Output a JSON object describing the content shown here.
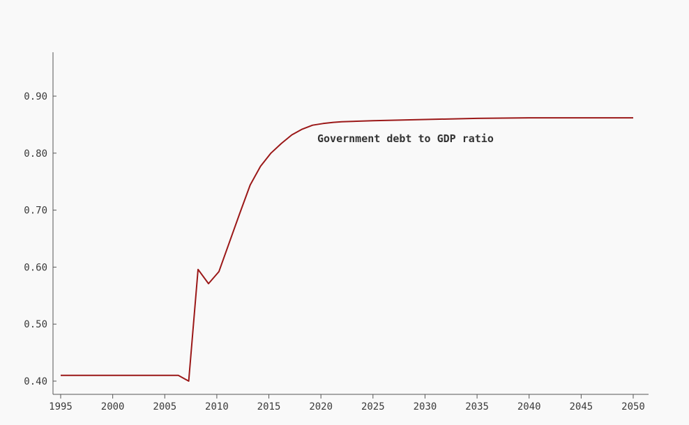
{
  "chart_data": {
    "type": "line",
    "title": "",
    "xlabel": "",
    "ylabel": "",
    "xlim": [
      1995,
      2050
    ],
    "ylim": [
      0.38,
      0.98
    ],
    "grid": false,
    "x_ticks": [
      1995,
      2000,
      2005,
      2010,
      2015,
      2020,
      2025,
      2030,
      2035,
      2040,
      2045,
      2050
    ],
    "y_ticks": [
      0.4,
      0.5,
      0.6,
      0.7,
      0.8,
      0.9
    ],
    "x_tick_labels": [
      "1995",
      "2000",
      "2005",
      "2010",
      "2015",
      "2020",
      "2025",
      "2030",
      "2035",
      "2040",
      "2045",
      "2050"
    ],
    "y_tick_labels": [
      "0.40",
      "0.50",
      "0.60",
      "0.70",
      "0.80",
      "0.90"
    ],
    "annotation": "Government debt to GDP ratio",
    "colors": {
      "background": "#f9f9f9",
      "line": "#9b1818",
      "axis": "#555555",
      "text": "#3a3a3a"
    },
    "series": [
      {
        "name": "Government debt to GDP ratio",
        "x": [
          1995,
          2000,
          2005,
          2006.3,
          2007.3,
          2008.2,
          2009.2,
          2010.2,
          2011.2,
          2012.2,
          2013.2,
          2014.2,
          2015.2,
          2016.2,
          2017.2,
          2018.2,
          2019.2,
          2020.2,
          2021.2,
          2022,
          2025,
          2030,
          2035,
          2040,
          2045,
          2050
        ],
        "y": [
          0.41,
          0.41,
          0.41,
          0.41,
          0.4,
          0.596,
          0.571,
          0.592,
          0.643,
          0.694,
          0.744,
          0.777,
          0.8,
          0.817,
          0.832,
          0.842,
          0.849,
          0.852,
          0.854,
          0.855,
          0.857,
          0.859,
          0.861,
          0.862,
          0.862,
          0.862
        ]
      }
    ]
  }
}
